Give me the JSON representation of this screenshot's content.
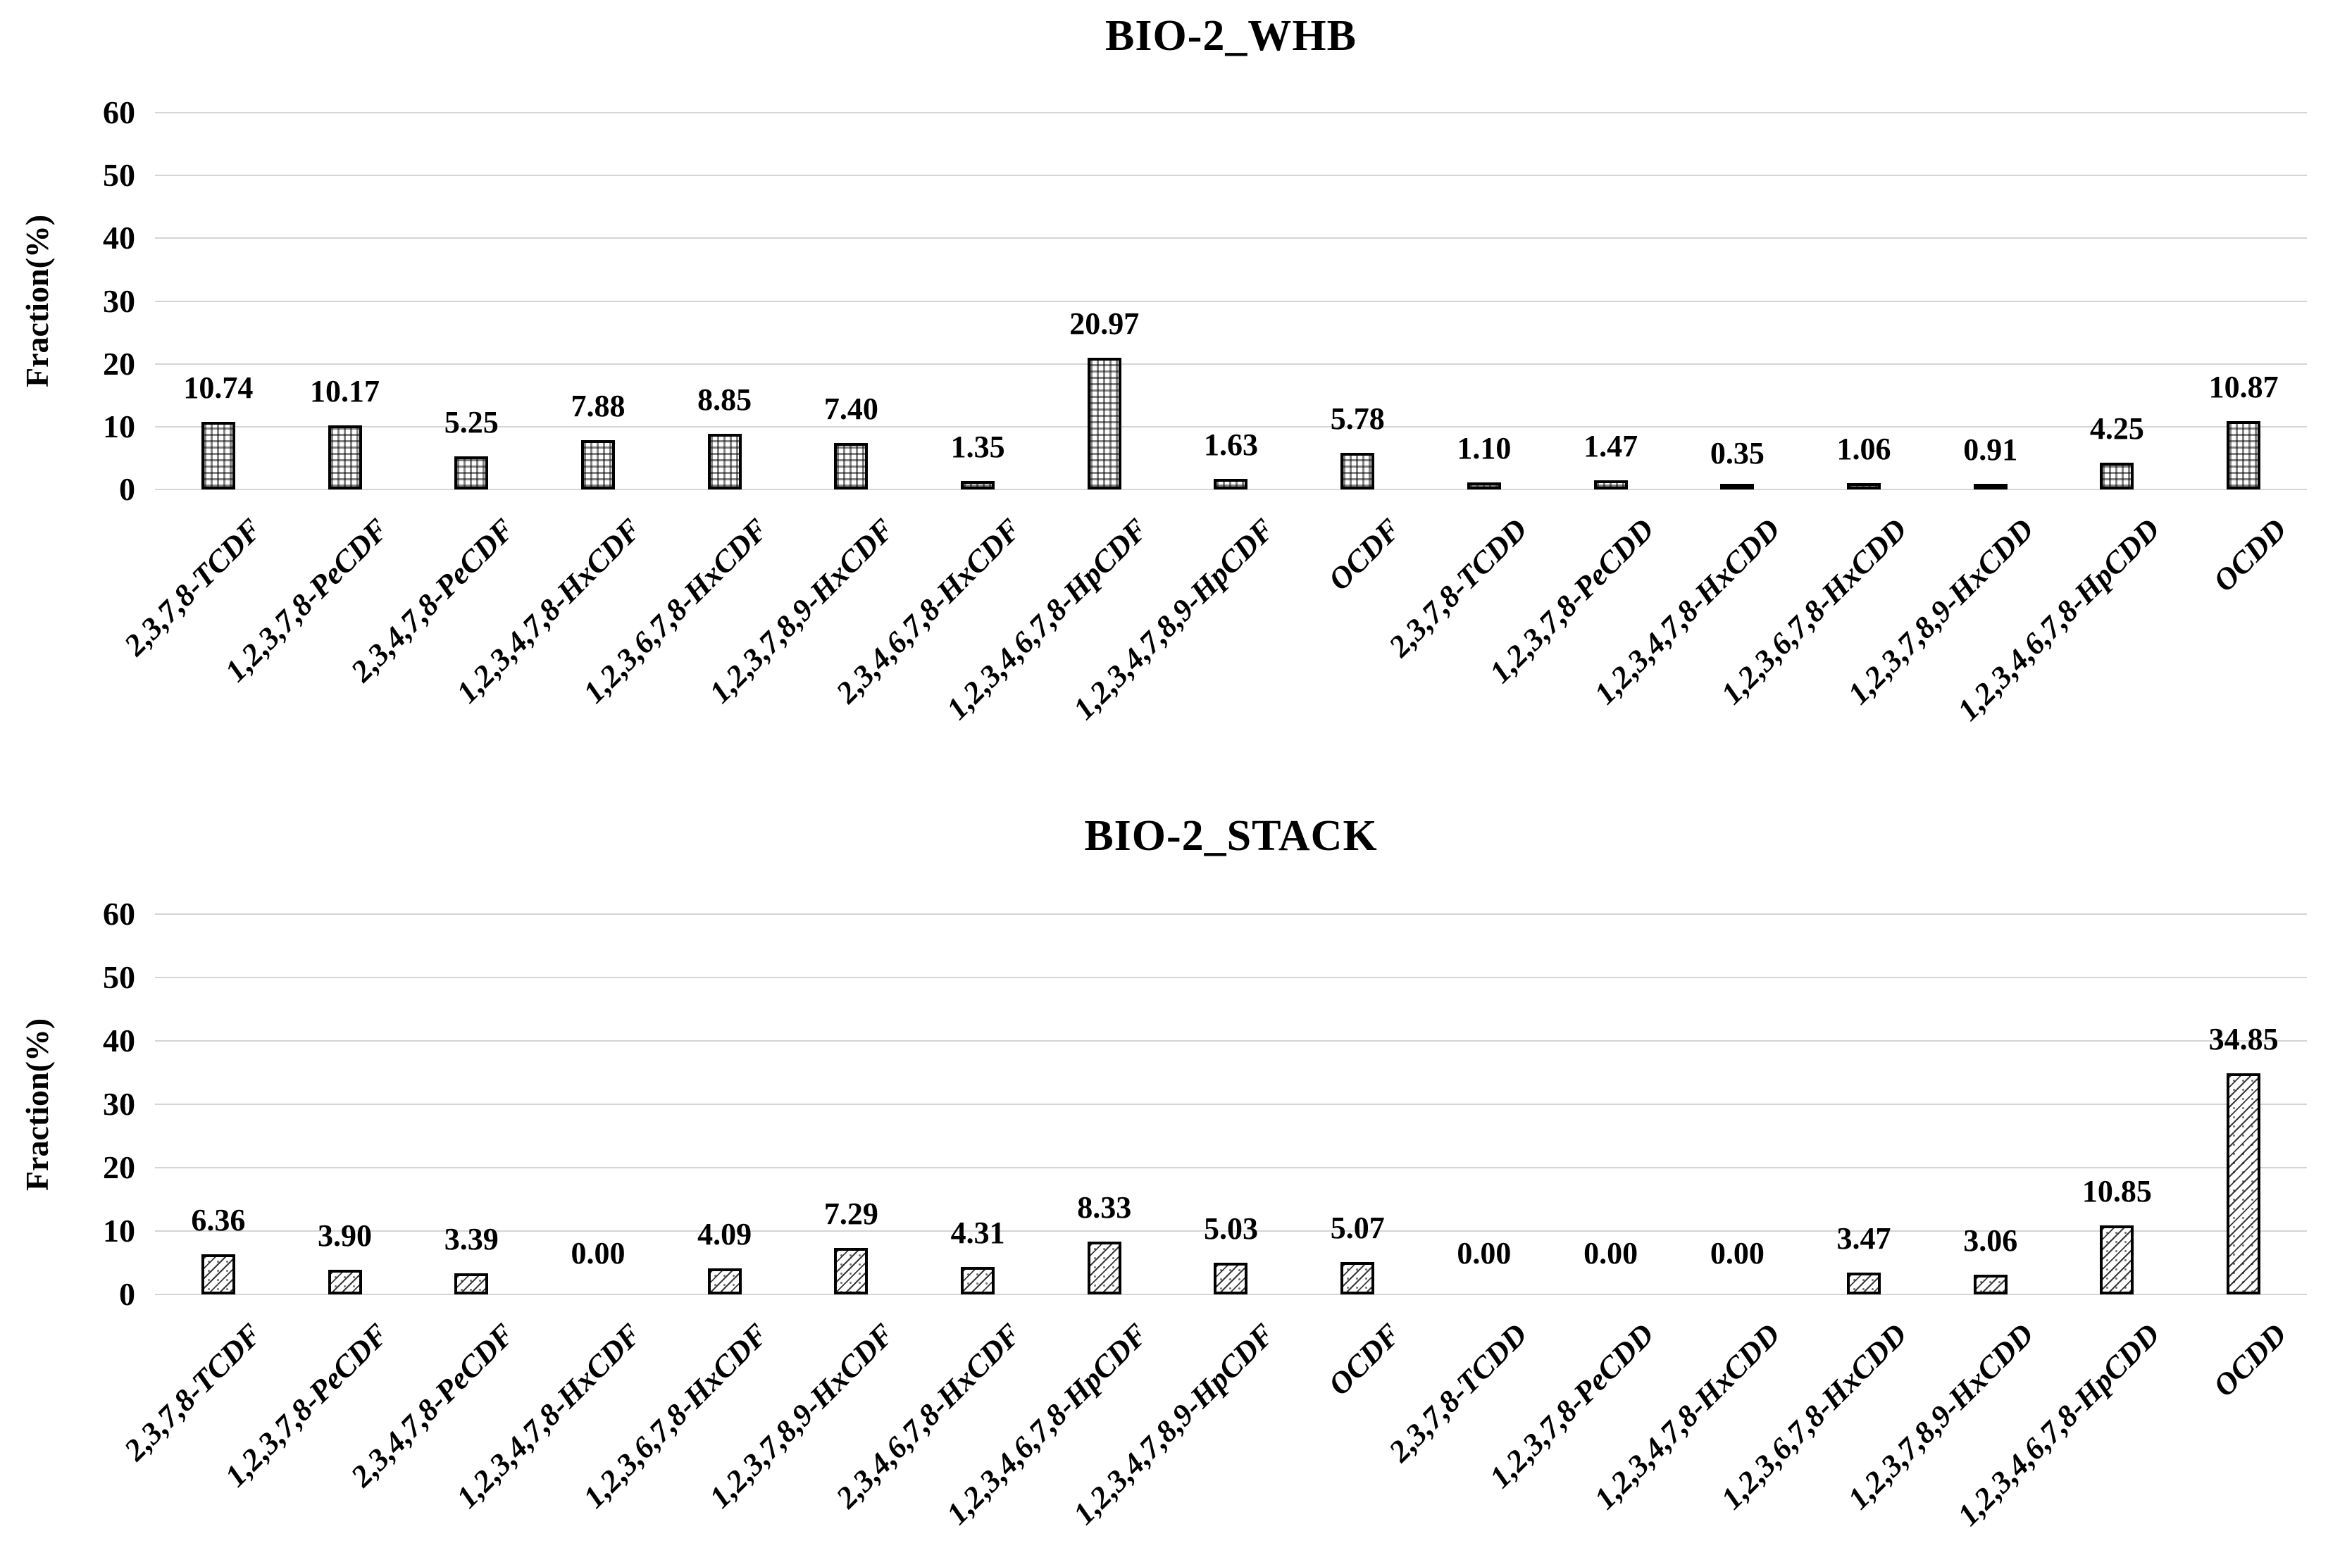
{
  "figure": {
    "background": "#ffffff",
    "text_color": "#000000",
    "gridline_color": "#d5d5d5",
    "bar_border_color": "#000000"
  },
  "chart_data": [
    {
      "type": "bar",
      "title": "BIO-2_WHB",
      "xlabel": "",
      "ylabel": "Fraction(%)",
      "ylim": [
        0,
        60
      ],
      "yticks": [
        0,
        10,
        20,
        30,
        40,
        50,
        60
      ],
      "grid": true,
      "legend_position": "none",
      "bar_pattern": "checker-grid",
      "categories": [
        "2,3,7,8-TCDF",
        "1,2,3,7,8-PeCDF",
        "2,3,4,7,8-PeCDF",
        "1,2,3,4,7,8-HxCDF",
        "1,2,3,6,7,8-HxCDF",
        "1,2,3,7,8,9-HxCDF",
        "2,3,4,6,7,8-HxCDF",
        "1,2,3,4,6,7,8-HpCDF",
        "1,2,3,4,7,8,9-HpCDF",
        "OCDF",
        "2,3,7,8-TCDD",
        "1,2,3,7,8-PeCDD",
        "1,2,3,4,7,8-HxCDD",
        "1,2,3,6,7,8-HxCDD",
        "1,2,3,7,8,9-HxCDD",
        "1,2,3,4,6,7,8-HpCDD",
        "OCDD"
      ],
      "values": [
        10.74,
        10.17,
        5.25,
        7.88,
        8.85,
        7.4,
        1.35,
        20.97,
        1.63,
        5.78,
        1.1,
        1.47,
        0.35,
        1.06,
        0.91,
        4.25,
        10.87
      ],
      "value_labels": [
        "10.74",
        "10.17",
        "5.25",
        "7.88",
        "8.85",
        "7.40",
        "1.35",
        "20.97",
        "1.63",
        "5.78",
        "1.10",
        "1.47",
        "0.35",
        "1.06",
        "0.91",
        "4.25",
        "10.87"
      ]
    },
    {
      "type": "bar",
      "title": "BIO-2_STACK",
      "xlabel": "",
      "ylabel": "Fraction(%)",
      "ylim": [
        0,
        60
      ],
      "yticks": [
        0,
        10,
        20,
        30,
        40,
        50,
        60
      ],
      "grid": true,
      "legend_position": "none",
      "bar_pattern": "diagonal-stripe",
      "categories": [
        "2,3,7,8-TCDF",
        "1,2,3,7,8-PeCDF",
        "2,3,4,7,8-PeCDF",
        "1,2,3,4,7,8-HxCDF",
        "1,2,3,6,7,8-HxCDF",
        "1,2,3,7,8,9-HxCDF",
        "2,3,4,6,7,8-HxCDF",
        "1,2,3,4,6,7,8-HpCDF",
        "1,2,3,4,7,8,9-HpCDF",
        "OCDF",
        "2,3,7,8-TCDD",
        "1,2,3,7,8-PeCDD",
        "1,2,3,4,7,8-HxCDD",
        "1,2,3,6,7,8-HxCDD",
        "1,2,3,7,8,9-HxCDD",
        "1,2,3,4,6,7,8-HpCDD",
        "OCDD"
      ],
      "values": [
        6.36,
        3.9,
        3.39,
        0.0,
        4.09,
        7.29,
        4.31,
        8.33,
        5.03,
        5.07,
        0.0,
        0.0,
        0.0,
        3.47,
        3.06,
        10.85,
        34.85
      ],
      "value_labels": [
        "6.36",
        "3.90",
        "3.39",
        "0.00",
        "4.09",
        "7.29",
        "4.31",
        "8.33",
        "5.03",
        "5.07",
        "0.00",
        "0.00",
        "0.00",
        "3.47",
        "3.06",
        "10.85",
        "34.85"
      ]
    }
  ]
}
